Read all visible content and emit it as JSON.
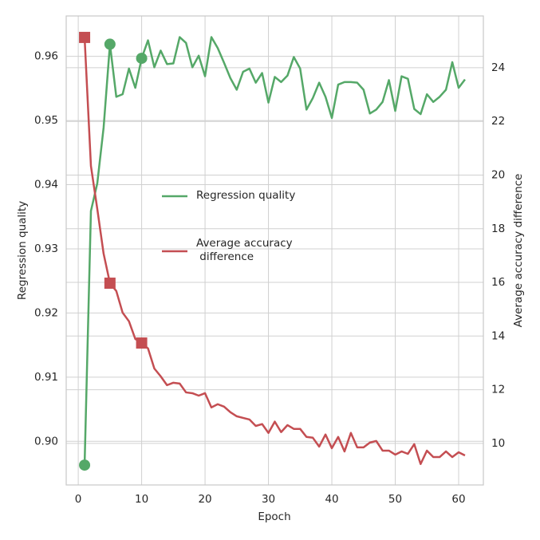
{
  "chart_data": {
    "type": "line",
    "x_label": "Epoch",
    "y_label": "Regression quality",
    "y2_label": "Average accuracy difference",
    "x": [
      1,
      2,
      3,
      4,
      5,
      6,
      7,
      8,
      9,
      10,
      11,
      12,
      13,
      14,
      15,
      16,
      17,
      18,
      19,
      20,
      21,
      22,
      23,
      24,
      25,
      26,
      27,
      28,
      29,
      30,
      31,
      32,
      33,
      34,
      35,
      36,
      37,
      38,
      39,
      40,
      41,
      42,
      43,
      44,
      45,
      46,
      47,
      48,
      49,
      50,
      51,
      52,
      53,
      54,
      55,
      56,
      57,
      58,
      59,
      60,
      61
    ],
    "xlim": [
      -1.9,
      63.9
    ],
    "xticks": [
      0,
      10,
      20,
      30,
      40,
      50,
      60
    ],
    "ylim": [
      0.8932,
      0.9663
    ],
    "yticks": [
      {
        "value": 0.9,
        "label": "0.90"
      },
      0.91,
      0.92,
      0.93,
      0.94,
      0.95,
      0.96
    ],
    "y2lim": [
      8.45,
      25.93
    ],
    "y2ticks": [
      10,
      12,
      14,
      16,
      18,
      20,
      22,
      24
    ],
    "grid": true,
    "legend": "center",
    "series": [
      {
        "name": "Regression quality",
        "color": "#55a868",
        "marker": "circle",
        "markers_at": [
          1,
          5,
          10
        ],
        "values": [
          0.8963,
          0.9359,
          0.9402,
          0.9489,
          0.9619,
          0.9537,
          0.9541,
          0.9581,
          0.9551,
          0.9597,
          0.9625,
          0.9583,
          0.9609,
          0.9588,
          0.9589,
          0.963,
          0.9621,
          0.9583,
          0.9601,
          0.9569,
          0.963,
          0.9613,
          0.959,
          0.9566,
          0.9548,
          0.9576,
          0.9581,
          0.9559,
          0.9574,
          0.9528,
          0.9568,
          0.956,
          0.957,
          0.9599,
          0.9581,
          0.9517,
          0.9535,
          0.9559,
          0.9537,
          0.9504,
          0.9556,
          0.956,
          0.956,
          0.9559,
          0.9548,
          0.9511,
          0.9517,
          0.9529,
          0.9563,
          0.9515,
          0.9569,
          0.9565,
          0.9518,
          0.951,
          0.9541,
          0.9529,
          0.9537,
          0.9548,
          0.9591,
          0.9551,
          0.9564
        ]
      },
      {
        "name": "Average accuracy\n difference",
        "color": "#c44e52",
        "marker": "square",
        "markers_at": [
          1,
          5,
          10
        ],
        "axis": "y2",
        "values": [
          25.13,
          20.34,
          18.74,
          17.07,
          15.97,
          15.68,
          14.87,
          14.55,
          13.89,
          13.74,
          13.54,
          12.79,
          12.5,
          12.17,
          12.26,
          12.23,
          11.9,
          11.87,
          11.78,
          11.87,
          11.34,
          11.46,
          11.37,
          11.16,
          11.01,
          10.95,
          10.89,
          10.65,
          10.72,
          10.39,
          10.81,
          10.42,
          10.68,
          10.54,
          10.54,
          10.24,
          10.21,
          9.88,
          10.33,
          9.82,
          10.24,
          9.7,
          10.39,
          9.85,
          9.85,
          10.03,
          10.09,
          9.73,
          9.73,
          9.58,
          9.7,
          9.61,
          9.97,
          9.23,
          9.73,
          9.49,
          9.49,
          9.7,
          9.49,
          9.67,
          9.55
        ]
      }
    ]
  }
}
